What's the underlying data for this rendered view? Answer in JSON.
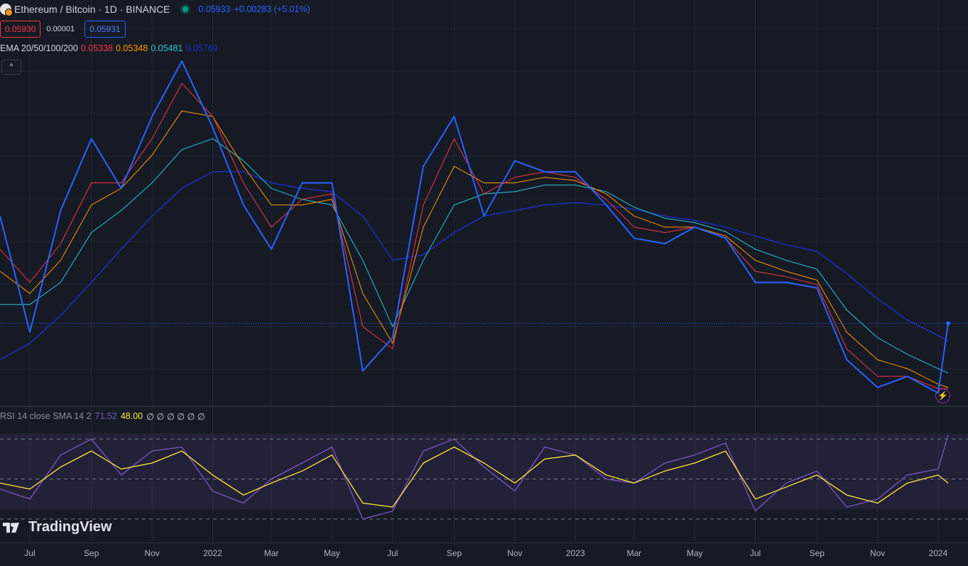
{
  "header": {
    "title": "Ethereum / Bitcoin · 1D · BINANCE",
    "price": "0.05933",
    "change": "+0.00283 (+5.01%)",
    "bid": "0.05930",
    "spread": "0.00001",
    "ask": "0.05931",
    "collapse_glyph": "^"
  },
  "ema_legend": {
    "label": "EMA 20/50/100/200",
    "ema20": "0.05338",
    "ema50": "0.05348",
    "ema100": "0.05481",
    "ema200": "0.05769"
  },
  "rsi_legend": {
    "label": "RSI 14 close SMA 14 2",
    "rsi": "71.52",
    "sma": "48.00",
    "extras": "∅ ∅ ∅ ∅ ∅ ∅"
  },
  "watermark": "TradingView",
  "colors": {
    "price": "#2962ff",
    "ema20": "#f23645",
    "ema50": "#ff9800",
    "ema100": "#26c6da",
    "ema200": "#1e2bbd",
    "rsi": "#7e57c2",
    "rsi_sma": "#ffeb3b"
  },
  "chart_data": [
    {
      "type": "line",
      "title": "Ethereum / Bitcoin · 1D · BINANCE",
      "x_ticks": [
        "Jul",
        "Sep",
        "Nov",
        "2022",
        "Mar",
        "May",
        "Jul",
        "Sep",
        "Nov",
        "2023",
        "Mar",
        "May",
        "Jul",
        "Sep",
        "Nov",
        "2024"
      ],
      "x": [
        "2021-06-01",
        "2021-07-01",
        "2021-08-01",
        "2021-09-01",
        "2021-10-01",
        "2021-11-01",
        "2021-12-01",
        "2022-01-01",
        "2022-02-01",
        "2022-03-01",
        "2022-04-01",
        "2022-05-01",
        "2022-06-01",
        "2022-07-01",
        "2022-08-01",
        "2022-09-01",
        "2022-10-01",
        "2022-11-01",
        "2022-12-01",
        "2023-01-01",
        "2023-02-01",
        "2023-03-01",
        "2023-04-01",
        "2023-05-01",
        "2023-06-01",
        "2023-07-01",
        "2023-08-01",
        "2023-09-01",
        "2023-10-01",
        "2023-11-01",
        "2023-12-01",
        "2024-01-01",
        "2024-01-11"
      ],
      "series": [
        {
          "name": "ETH/BTC",
          "values": [
            0.069,
            0.0585,
            0.0695,
            0.076,
            0.0715,
            0.078,
            0.083,
            0.077,
            0.07,
            0.066,
            0.072,
            0.072,
            0.055,
            0.058,
            0.0735,
            0.078,
            0.069,
            0.074,
            0.073,
            0.073,
            0.07,
            0.067,
            0.0665,
            0.068,
            0.067,
            0.063,
            0.063,
            0.0625,
            0.056,
            0.0535,
            0.0545,
            0.053,
            0.0593
          ]
        },
        {
          "name": "EMA 20",
          "values": [
            0.066,
            0.063,
            0.0665,
            0.072,
            0.072,
            0.076,
            0.081,
            0.078,
            0.072,
            0.068,
            0.0705,
            0.071,
            0.059,
            0.057,
            0.07,
            0.076,
            0.071,
            0.0725,
            0.073,
            0.0725,
            0.0705,
            0.068,
            0.0675,
            0.068,
            0.067,
            0.064,
            0.0635,
            0.0628,
            0.057,
            0.0545,
            0.0545,
            0.0534,
            0.0534
          ]
        },
        {
          "name": "EMA 50",
          "values": [
            0.064,
            0.062,
            0.065,
            0.07,
            0.0715,
            0.0745,
            0.0785,
            0.078,
            0.0735,
            0.07,
            0.07,
            0.0705,
            0.062,
            0.0575,
            0.068,
            0.0735,
            0.072,
            0.072,
            0.0725,
            0.0722,
            0.071,
            0.069,
            0.068,
            0.068,
            0.0672,
            0.065,
            0.064,
            0.0632,
            0.0585,
            0.056,
            0.0552,
            0.0538,
            0.0535
          ]
        },
        {
          "name": "EMA 100",
          "values": [
            0.061,
            0.061,
            0.063,
            0.0675,
            0.0695,
            0.072,
            0.075,
            0.076,
            0.074,
            0.0715,
            0.0705,
            0.07,
            0.065,
            0.059,
            0.065,
            0.07,
            0.071,
            0.0712,
            0.0718,
            0.0718,
            0.0712,
            0.0698,
            0.0688,
            0.0684,
            0.0676,
            0.066,
            0.065,
            0.0642,
            0.0605,
            0.058,
            0.0565,
            0.0552,
            0.0548
          ]
        },
        {
          "name": "EMA 200",
          "values": [
            0.056,
            0.0575,
            0.06,
            0.063,
            0.066,
            0.069,
            0.0715,
            0.073,
            0.073,
            0.072,
            0.0715,
            0.0712,
            0.069,
            0.065,
            0.0655,
            0.0675,
            0.069,
            0.0695,
            0.07,
            0.0702,
            0.07,
            0.0696,
            0.069,
            0.0686,
            0.068,
            0.0672,
            0.0664,
            0.0658,
            0.0638,
            0.0615,
            0.0596,
            0.0582,
            0.0577
          ]
        }
      ],
      "ylim": [
        0.0545,
        0.085
      ],
      "grid": true,
      "legend": "top-left"
    },
    {
      "type": "line",
      "title": "RSI 14 close SMA 14 2",
      "x": [
        "2021-06-01",
        "2021-07-01",
        "2021-08-01",
        "2021-09-01",
        "2021-10-01",
        "2021-11-01",
        "2021-12-01",
        "2022-01-01",
        "2022-02-01",
        "2022-03-01",
        "2022-04-01",
        "2022-05-01",
        "2022-06-01",
        "2022-07-01",
        "2022-08-01",
        "2022-09-01",
        "2022-10-01",
        "2022-11-01",
        "2022-12-01",
        "2023-01-01",
        "2023-02-01",
        "2023-03-01",
        "2023-04-01",
        "2023-05-01",
        "2023-06-01",
        "2023-07-01",
        "2023-08-01",
        "2023-09-01",
        "2023-10-01",
        "2023-11-01",
        "2023-12-01",
        "2024-01-01",
        "2024-01-11"
      ],
      "series": [
        {
          "name": "RSI",
          "values": [
            45,
            40,
            62,
            70,
            52,
            64,
            66,
            44,
            38,
            50,
            58,
            66,
            30,
            34,
            64,
            70,
            56,
            44,
            66,
            62,
            50,
            48,
            58,
            62,
            68,
            34,
            48,
            54,
            36,
            40,
            52,
            55,
            72
          ]
        },
        {
          "name": "RSI SMA",
          "values": [
            48,
            45,
            56,
            64,
            55,
            58,
            64,
            52,
            42,
            48,
            54,
            62,
            38,
            36,
            58,
            66,
            58,
            48,
            60,
            62,
            52,
            48,
            54,
            58,
            64,
            40,
            46,
            52,
            42,
            38,
            48,
            52,
            48
          ]
        }
      ],
      "levels": [
        70,
        50,
        30
      ],
      "ylim": [
        25,
        80
      ],
      "grid": true
    }
  ]
}
